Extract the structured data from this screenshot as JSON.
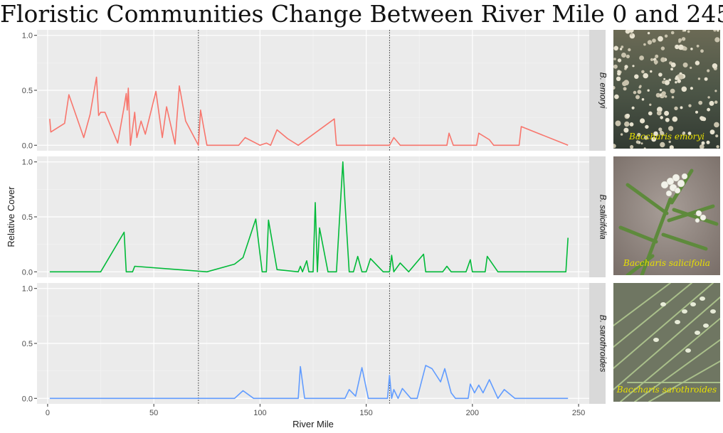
{
  "title": "Floristic Communities Change Between River Mile 0 and 245",
  "chart_data": {
    "type": "line",
    "xlabel": "River Mile",
    "ylabel": "Relative Cover",
    "xlim": [
      -5,
      255
    ],
    "ylim": [
      -0.05,
      1.05
    ],
    "xticks": [
      0,
      50,
      100,
      150,
      200,
      250
    ],
    "yticks": [
      0.0,
      0.5,
      1.0
    ],
    "ytick_labels": [
      "0.0",
      "0.5",
      "1.0"
    ],
    "vlines": [
      71,
      161
    ],
    "grid": true,
    "panels": [
      {
        "strip": "B. emoryi",
        "color": "#f8766d",
        "photo_caption": "Baccharis emoryi",
        "x": [
          1,
          1.5,
          8,
          10,
          17,
          20,
          23,
          24,
          25,
          27,
          33,
          36,
          37,
          37.5,
          38,
          39,
          41,
          42,
          44,
          46,
          51,
          54,
          56,
          60,
          62,
          65,
          71,
          72,
          75,
          90,
          93,
          100,
          103,
          105,
          108,
          113,
          118,
          135,
          136,
          161,
          163,
          166,
          188,
          189,
          191,
          202,
          203,
          208,
          210,
          222,
          223,
          245
        ],
        "y": [
          0.24,
          0.12,
          0.2,
          0.46,
          0.07,
          0.28,
          0.62,
          0.27,
          0.3,
          0.3,
          0.02,
          0.35,
          0.47,
          0.32,
          0.52,
          0.0,
          0.3,
          0.07,
          0.22,
          0.1,
          0.49,
          0.07,
          0.35,
          0.01,
          0.54,
          0.22,
          0.0,
          0.32,
          0.0,
          0.0,
          0.07,
          0.0,
          0.02,
          0.0,
          0.14,
          0.06,
          0.0,
          0.24,
          0.0,
          0.0,
          0.07,
          0.0,
          0.0,
          0.11,
          0.0,
          0.0,
          0.11,
          0.05,
          0.0,
          0.0,
          0.17,
          0.0
        ]
      },
      {
        "strip": "B. salicifolia",
        "color": "#00ba38",
        "photo_caption": "Baccharis salicifolia",
        "x": [
          1,
          25,
          36,
          37,
          40,
          41,
          75,
          88,
          92,
          98,
          101,
          103,
          104,
          108,
          118,
          119,
          120,
          122,
          123,
          125,
          126,
          127,
          128,
          132,
          136,
          139,
          140,
          142,
          143,
          144,
          146,
          148,
          150,
          152,
          158,
          161,
          162,
          163,
          166,
          170,
          177,
          178,
          186,
          188,
          190,
          197,
          199,
          200,
          204,
          206,
          207,
          212,
          244,
          245
        ],
        "y": [
          0.0,
          0.0,
          0.36,
          0.0,
          0.0,
          0.05,
          0.0,
          0.07,
          0.13,
          0.48,
          0.0,
          0.0,
          0.47,
          0.02,
          0.0,
          0.05,
          0.0,
          0.1,
          0.0,
          0.0,
          0.63,
          0.0,
          0.4,
          0.0,
          0.0,
          1.0,
          0.63,
          0.0,
          0.0,
          0.0,
          0.14,
          0.0,
          0.0,
          0.12,
          0.0,
          0.0,
          0.15,
          0.0,
          0.08,
          0.0,
          0.16,
          0.0,
          0.0,
          0.05,
          0.0,
          0.0,
          0.11,
          0.0,
          0.0,
          0.0,
          0.14,
          0.0,
          0.0,
          0.31
        ]
      },
      {
        "strip": "B. sarothroides",
        "color": "#619cff",
        "photo_caption": "Baccharis sarothroides",
        "x": [
          1,
          88,
          92,
          97,
          118,
          119,
          121,
          140,
          142,
          145,
          148,
          151,
          160,
          161,
          162,
          163,
          165,
          167,
          171,
          174,
          178,
          181,
          185,
          187,
          190,
          192,
          198,
          199,
          201,
          203,
          205,
          208,
          212,
          215,
          220,
          245
        ],
        "y": [
          0.0,
          0.0,
          0.07,
          0.0,
          0.0,
          0.29,
          0.0,
          0.0,
          0.08,
          0.02,
          0.28,
          0.0,
          0.0,
          0.21,
          0.0,
          0.08,
          0.0,
          0.09,
          0.0,
          0.0,
          0.3,
          0.27,
          0.15,
          0.27,
          0.05,
          0.0,
          0.0,
          0.13,
          0.05,
          0.12,
          0.05,
          0.17,
          0.0,
          0.08,
          0.0,
          0.0
        ]
      }
    ]
  }
}
